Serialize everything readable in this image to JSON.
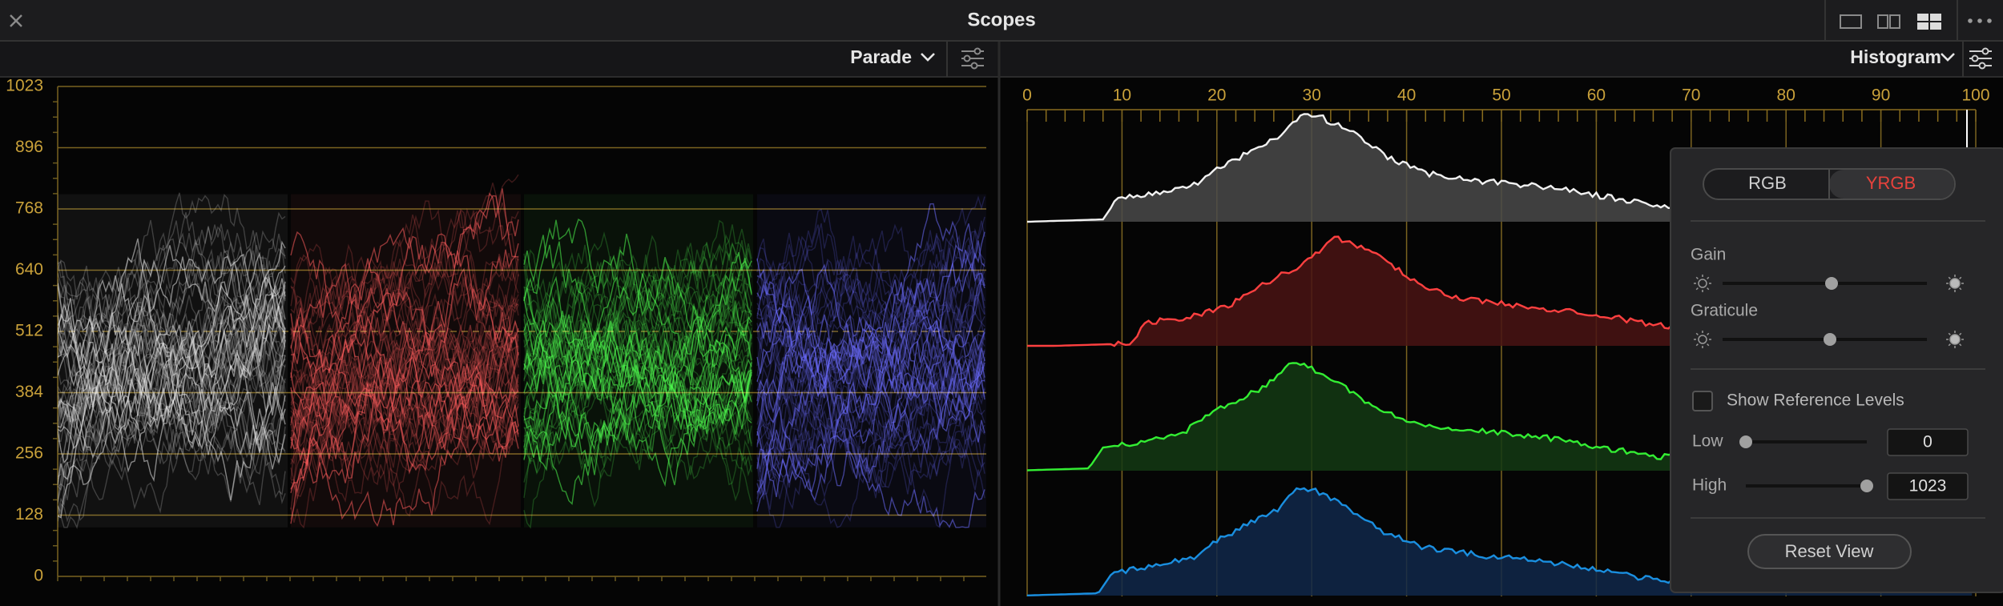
{
  "window": {
    "title": "Scopes"
  },
  "header": {
    "left_view": "Parade",
    "right_view": "Histogram"
  },
  "parade": {
    "axis_labels": [
      "1023",
      "896",
      "768",
      "640",
      "512",
      "384",
      "256",
      "128",
      "0"
    ]
  },
  "histogram": {
    "axis_labels": [
      "0",
      "10",
      "20",
      "30",
      "40",
      "50",
      "60",
      "70",
      "80",
      "90",
      "100"
    ]
  },
  "settings": {
    "modes": [
      "RGB",
      "YRGB"
    ],
    "gain": "Gain",
    "graticule": "Graticule",
    "show_reference_levels": "Show Reference Levels",
    "low": {
      "label": "Low",
      "value": "0"
    },
    "high": {
      "label": "High",
      "value": "1023"
    },
    "reset": "Reset View"
  }
}
